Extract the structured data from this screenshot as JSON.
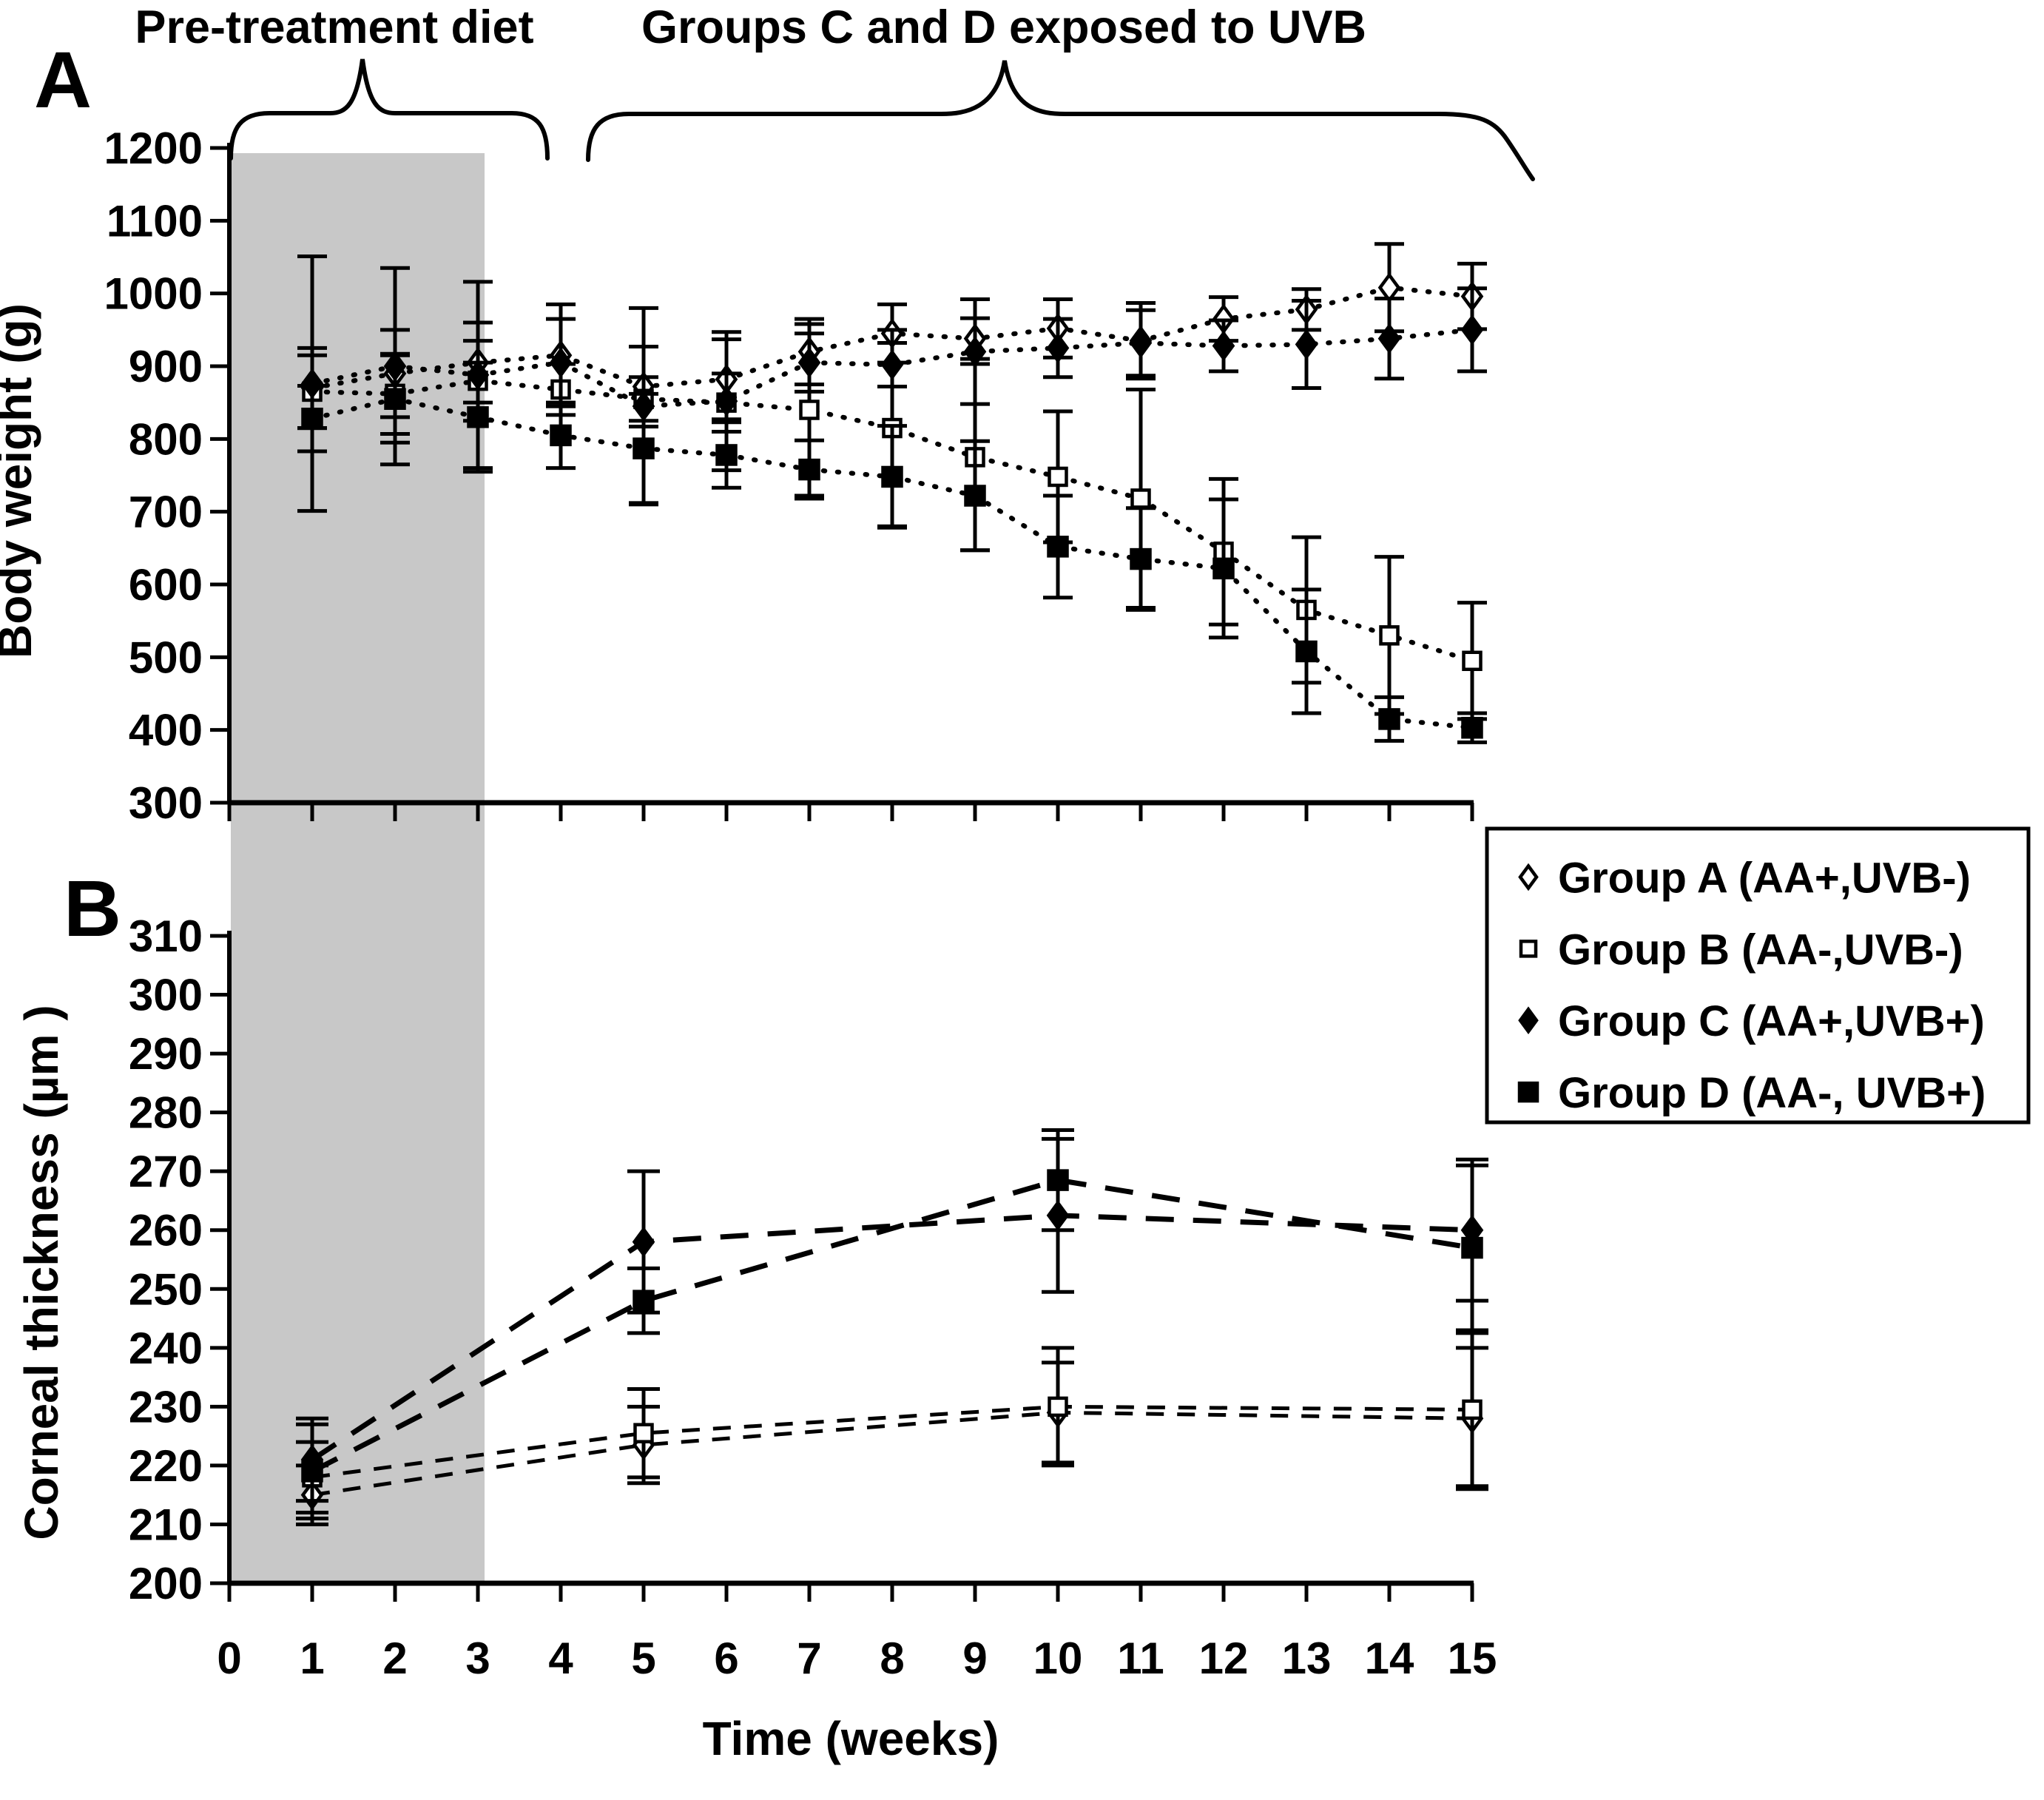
{
  "page": {
    "background_color": "#ffffff",
    "ink_color": "#000000",
    "shade_color": "#c8c8c8"
  },
  "annotations": {
    "pretreatment": "Pre-treatment diet",
    "uvb_exposure": "Groups C and D exposed to UVB",
    "panel_a": "A",
    "panel_b": "B"
  },
  "x_axis": {
    "label": "Time (weeks)",
    "ticks": [
      0,
      1,
      2,
      3,
      4,
      5,
      6,
      7,
      8,
      9,
      10,
      11,
      12,
      13,
      14,
      15
    ]
  },
  "legend": {
    "items": [
      {
        "marker": "open-diamond",
        "label": "Group A (AA+,UVB-)"
      },
      {
        "marker": "open-square",
        "label": "Group B (AA-,UVB-)"
      },
      {
        "marker": "filled-diamond",
        "label": "Group C (AA+,UVB+)"
      },
      {
        "marker": "filled-square",
        "label": "Group D (AA-, UVB+)"
      }
    ]
  },
  "chart_data": [
    {
      "panel": "A",
      "type": "line",
      "ylabel": "Body weight (g)",
      "xlabel": "Time (weeks)",
      "ylim": [
        300,
        1200
      ],
      "yticks": [
        1200,
        1100,
        1000,
        900,
        800,
        700,
        600,
        500,
        400,
        300
      ],
      "xlim": [
        0,
        15
      ],
      "grid": false,
      "line_style": "dotted",
      "shaded_region": {
        "x_start": 0,
        "x_end": 3.1,
        "meaning": "Pre-treatment diet"
      },
      "x": [
        1,
        2,
        3,
        4,
        5,
        6,
        7,
        8,
        9,
        10,
        11,
        12,
        13,
        14,
        15
      ],
      "series": [
        {
          "name": "Group A (AA+,UVB-)",
          "marker": "open-diamond",
          "values": [
            870,
            890,
            905,
            915,
            872,
            882,
            920,
            945,
            938,
            952,
            935,
            965,
            978,
            1008,
            996
          ],
          "err": [
            55,
            60,
            55,
            70,
            55,
            55,
            45,
            40,
            28,
            40,
            52,
            30,
            28,
            60,
            45
          ]
        },
        {
          "name": "Group B (AA-,UVB-)",
          "marker": "open-square",
          "values": [
            865,
            862,
            880,
            868,
            855,
            850,
            840,
            815,
            775,
            748,
            718,
            645,
            565,
            530,
            495
          ],
          "err": [
            50,
            55,
            55,
            35,
            30,
            40,
            118,
            135,
            128,
            90,
            150,
            100,
            100,
            108,
            80
          ]
        },
        {
          "name": "Group C (AA+,UVB+)",
          "marker": "filled-diamond",
          "values": [
            876,
            900,
            888,
            905,
            845,
            852,
            905,
            902,
            920,
            925,
            932,
            928,
            930,
            938,
            950
          ],
          "err": [
            175,
            135,
            128,
            60,
            135,
            95,
            40,
            30,
            72,
            40,
            45,
            35,
            60,
            55,
            57
          ]
        },
        {
          "name": "Group D (AA-, UVB+)",
          "marker": "filled-square",
          "values": [
            828,
            855,
            830,
            805,
            787,
            778,
            758,
            748,
            722,
            652,
            635,
            622,
            508,
            415,
            403
          ],
          "err": [
            45,
            60,
            75,
            45,
            75,
            45,
            40,
            70,
            75,
            70,
            70,
            95,
            85,
            30,
            20
          ]
        }
      ]
    },
    {
      "panel": "B",
      "type": "line",
      "ylabel": "Corneal thickness (µm )",
      "xlabel": "Time (weeks)",
      "ylim": [
        200,
        310
      ],
      "yticks": [
        310,
        300,
        290,
        280,
        270,
        260,
        250,
        240,
        230,
        220,
        210,
        200
      ],
      "xlim": [
        0,
        15
      ],
      "grid": false,
      "line_style": "dashed",
      "shaded_region": {
        "x_start": 0,
        "x_end": 3.1,
        "meaning": "Pre-treatment diet"
      },
      "x": [
        1,
        5,
        10,
        15
      ],
      "series": [
        {
          "name": "Group A (AA+,UVB-)",
          "marker": "open-diamond",
          "values": [
            215,
            223.5,
            229,
            228
          ],
          "err": [
            5,
            6.5,
            8.5,
            12
          ]
        },
        {
          "name": "Group B (AA-,UVB-)",
          "marker": "open-square",
          "values": [
            218,
            225.5,
            230,
            229.5
          ],
          "err": [
            6,
            7.5,
            10,
            13
          ]
        },
        {
          "name": "Group C (AA+,UVB+)",
          "marker": "filled-diamond",
          "values": [
            221,
            258,
            262.5,
            260
          ],
          "err": [
            7,
            12,
            13,
            12
          ]
        },
        {
          "name": "Group D (AA-, UVB+)",
          "marker": "filled-square",
          "values": [
            219,
            248,
            268.5,
            257
          ],
          "err": [
            8,
            5.5,
            8.5,
            14
          ]
        }
      ]
    }
  ]
}
